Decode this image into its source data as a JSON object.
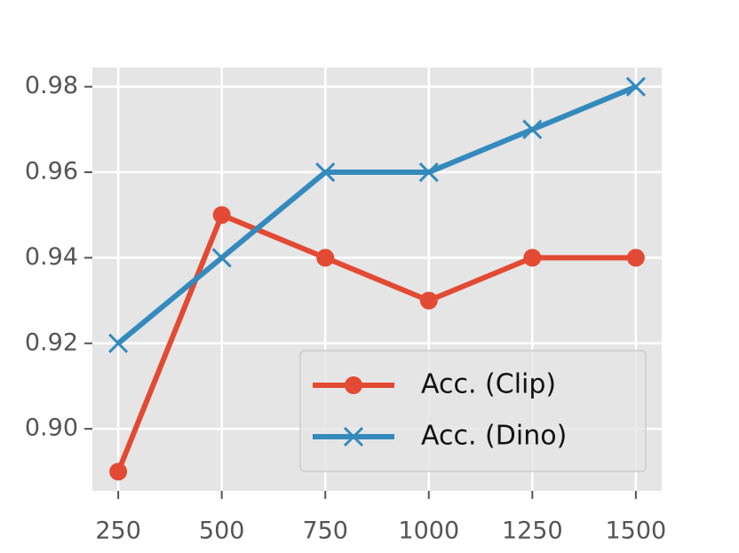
{
  "chart_data": {
    "type": "line",
    "x": [
      250,
      500,
      750,
      1000,
      1250,
      1500
    ],
    "series": [
      {
        "name": "Acc. (Clip)",
        "color": "#E24A33",
        "marker": "circle",
        "values": [
          0.89,
          0.95,
          0.94,
          0.93,
          0.94,
          0.94
        ]
      },
      {
        "name": "Acc. (Dino)",
        "color": "#348ABD",
        "marker": "x",
        "values": [
          0.92,
          0.94,
          0.96,
          0.96,
          0.97,
          0.98
        ]
      }
    ],
    "xlim": [
      187.5,
      1562.5
    ],
    "xticks": [
      250,
      500,
      750,
      1000,
      1250,
      1500
    ],
    "ylim": [
      0.8855,
      0.9845
    ],
    "yticks": [
      {
        "value": 0.9,
        "label": "0.90"
      },
      {
        "value": 0.92,
        "label": "0.92"
      },
      {
        "value": 0.94,
        "label": "0.94"
      },
      {
        "value": 0.96,
        "label": "0.96"
      },
      {
        "value": 0.98,
        "label": "0.98"
      }
    ],
    "grid": true,
    "legend": "lower right"
  }
}
